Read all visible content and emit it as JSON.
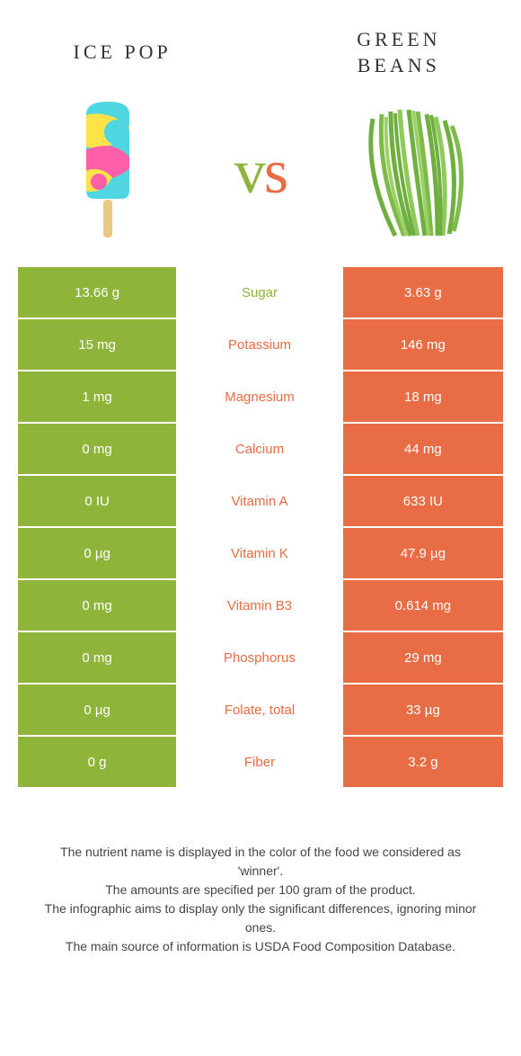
{
  "colors": {
    "left_bg": "#8fb43a",
    "right_bg": "#e86c44",
    "left_label": "#8fb43a",
    "right_label": "#e86c44",
    "vs_left": "#8fb43a",
    "vs_right": "#e86c44",
    "text": "#333333"
  },
  "header": {
    "left_title": "Ice pop",
    "right_title": "Green Beans",
    "vs": "vs"
  },
  "rows": [
    {
      "nutrient": "Sugar",
      "left": "13.66 g",
      "right": "3.63 g",
      "winner": "left"
    },
    {
      "nutrient": "Potassium",
      "left": "15 mg",
      "right": "146 mg",
      "winner": "right"
    },
    {
      "nutrient": "Magnesium",
      "left": "1 mg",
      "right": "18 mg",
      "winner": "right"
    },
    {
      "nutrient": "Calcium",
      "left": "0 mg",
      "right": "44 mg",
      "winner": "right"
    },
    {
      "nutrient": "Vitamin A",
      "left": "0 IU",
      "right": "633 IU",
      "winner": "right"
    },
    {
      "nutrient": "Vitamin K",
      "left": "0 µg",
      "right": "47.9 µg",
      "winner": "right"
    },
    {
      "nutrient": "Vitamin B3",
      "left": "0 mg",
      "right": "0.614 mg",
      "winner": "right"
    },
    {
      "nutrient": "Phosphorus",
      "left": "0 mg",
      "right": "29 mg",
      "winner": "right"
    },
    {
      "nutrient": "Folate, total",
      "left": "0 µg",
      "right": "33 µg",
      "winner": "right"
    },
    {
      "nutrient": "Fiber",
      "left": "0 g",
      "right": "3.2 g",
      "winner": "right"
    }
  ],
  "footer": {
    "line1": "The nutrient name is displayed in the color of the food we considered as 'winner'.",
    "line2": "The amounts are specified per 100 gram of the product.",
    "line3": "The infographic aims to display only the significant differences, ignoring minor ones.",
    "line4": "The main source of information is USDA Food Composition Database."
  }
}
